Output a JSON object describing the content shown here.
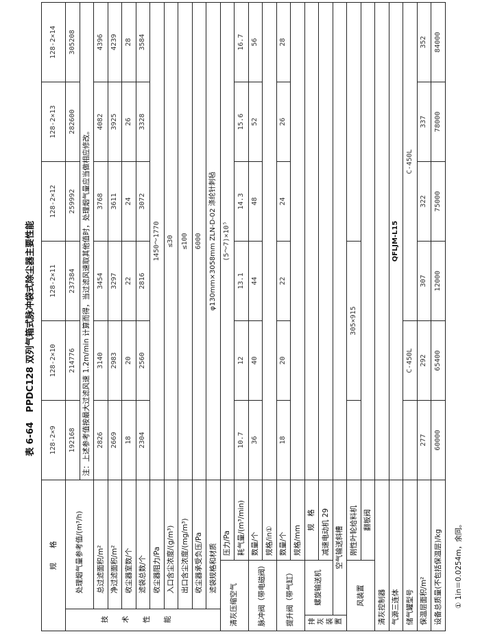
{
  "title": {
    "number": "表 6-64",
    "text": "PPDC128 双列气箱式脉冲袋式除尘器主要性能"
  },
  "header": {
    "label": "规　　格",
    "models": [
      "128-2×9",
      "128-2×10",
      "128-2×11",
      "128-2×12",
      "128-2×13",
      "128-2×14"
    ]
  },
  "groups": {
    "tech": "技术性能",
    "cleaning_air": "清灰压缩空气",
    "pulse_valve": "脉冲阀（带电磁阀）",
    "lift_valve": "提升阀（带气缸）",
    "discharge": "排灰装置",
    "screw": "螺旋输送机",
    "fan": "风装置"
  },
  "rows": {
    "gas_volume": {
      "label": "处理烟气量参考值/(m³/h)",
      "values": [
        "192168",
        "214776",
        "237384",
        "259992",
        "282600",
        "305208"
      ]
    },
    "note": "注：上述参考值按最大过滤风速 1.2m/min 计算而得，当过滤风速取其他值时，处理烟气量应当做相应修改。",
    "total_area": {
      "label": "总过滤面积/m²",
      "values": [
        "2826",
        "3140",
        "3454",
        "3768",
        "4082",
        "4396"
      ]
    },
    "net_area": {
      "label": "净过滤面积/m²",
      "values": [
        "2669",
        "2983",
        "3297",
        "3611",
        "3925",
        "4239"
      ]
    },
    "chambers": {
      "label": "收尘器室数/个",
      "values": [
        "18",
        "20",
        "22",
        "24",
        "26",
        "28"
      ]
    },
    "bags": {
      "label": "滤袋总数/个",
      "values": [
        "2304",
        "2560",
        "2816",
        "3072",
        "3328",
        "3584"
      ]
    },
    "resistance": {
      "label": "收尘器阻力/Pa",
      "value": "1450～1770"
    },
    "inlet": {
      "label": "入口含尘浓度/(g/m³)",
      "value": "≤30"
    },
    "outlet": {
      "label": "出口含尘浓度/(mg/m³)",
      "value": "≤100"
    },
    "negative_pressure": {
      "label": "收尘器承受负压/Pa",
      "value": "6000"
    },
    "bag_spec": {
      "label": "滤袋规格和材质",
      "value": "φ130mm×3058mm ZLN-D-02 涤纶针刺毡"
    },
    "air_pressure": {
      "label": "压力/Pa",
      "value": "(5～7)×10⁵"
    },
    "air_consumption": {
      "label": "耗气量/(m³/min)",
      "values": [
        "10.7",
        "12",
        "13.1",
        "14.3",
        "15.6",
        "16.7"
      ]
    },
    "pulse_qty": {
      "label": "数量/个",
      "values": [
        "36",
        "40",
        "44",
        "48",
        "52",
        "56"
      ]
    },
    "pulse_spec": {
      "label": "规格/in①"
    },
    "lift_qty": {
      "label": "数量/个",
      "values": [
        "18",
        "20",
        "22",
        "24",
        "26",
        "28"
      ]
    },
    "lift_spec": {
      "label": "规格/mm"
    },
    "screw_spec": {
      "label": "规　格"
    },
    "screw_motor": {
      "label": "减速电动机 29"
    },
    "air_slide": {
      "label": "空气输送斜槽"
    },
    "rotary_feeder": {
      "label": "刚性叶轮给料机",
      "value": "305×915"
    },
    "flap_valve": {
      "label": "翻板阀"
    },
    "controller": {
      "label": "清灰控制器"
    },
    "air_source": {
      "label": "气源三连体",
      "value": "QFLJM-L15"
    },
    "tank_model": {
      "label": "储气罐型号",
      "values": [
        "C-450L",
        "C-450L"
      ]
    },
    "insulation_area": {
      "label": "保温层面积/m²",
      "values": [
        "277",
        "292",
        "307",
        "322",
        "337",
        "352"
      ]
    },
    "total_mass": {
      "label": "设备总质量(不包括保温层)/kg",
      "values": [
        "60000",
        "65400",
        "12000",
        "75000",
        "78000",
        "84000"
      ]
    }
  },
  "footnote": "① 1in＝0.0254m，余同。"
}
